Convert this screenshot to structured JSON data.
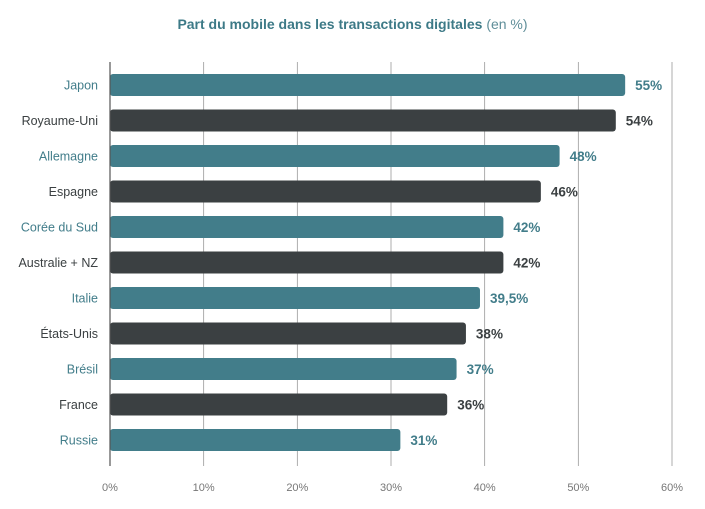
{
  "chart_data": {
    "type": "bar",
    "orientation": "horizontal",
    "title": "Part du mobile dans les transactions digitales",
    "title_unit": "(en %)",
    "categories": [
      "Japon",
      "Royaume-Uni",
      "Allemagne",
      "Espagne",
      "Corée du Sud",
      "Australie + NZ",
      "Italie",
      "États-Unis",
      "Brésil",
      "France",
      "Russie"
    ],
    "values": [
      55,
      54,
      48,
      46,
      42,
      42,
      39.5,
      38,
      37,
      36,
      31
    ],
    "value_labels": [
      "55%",
      "54%",
      "48%",
      "46%",
      "42%",
      "42%",
      "39,5%",
      "38%",
      "37%",
      "36%",
      "31%"
    ],
    "xlim": [
      0,
      60
    ],
    "x_ticks": [
      0,
      10,
      20,
      30,
      40,
      50,
      60
    ],
    "x_tick_labels": [
      "0%",
      "10%",
      "20%",
      "30%",
      "40%",
      "50%",
      "60%"
    ],
    "grid": "vertical",
    "colors": {
      "teal": "#427d8a",
      "dark": "#3b4042",
      "grid": "#9a9a9a",
      "axis": "#555555"
    },
    "bar_color_pattern": [
      "teal",
      "dark"
    ]
  }
}
